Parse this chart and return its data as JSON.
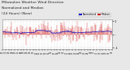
{
  "title_line1": "Milwaukee Weather Wind Direction",
  "title_line2": "Normalized and Median",
  "title_line3": "(24 Hours) (New)",
  "title_fontsize": 3.2,
  "background_color": "#e8e8e8",
  "plot_bg_color": "#ffffff",
  "grid_color": "#bbbbbb",
  "num_points": 288,
  "y_min": -1.1,
  "y_max": 1.1,
  "ytick_positions": [
    1,
    0,
    -1
  ],
  "ytick_labels": [
    "1",
    ".",
    "-1"
  ],
  "legend_labels": [
    "Normalized",
    "Median"
  ],
  "legend_colors": [
    "#0000cc",
    "#cc0000"
  ],
  "bar_color": "#cc0000",
  "median_color": "#0000bb",
  "spine_color": "#888888",
  "fig_width": 1.6,
  "fig_height": 0.87,
  "dpi": 100
}
